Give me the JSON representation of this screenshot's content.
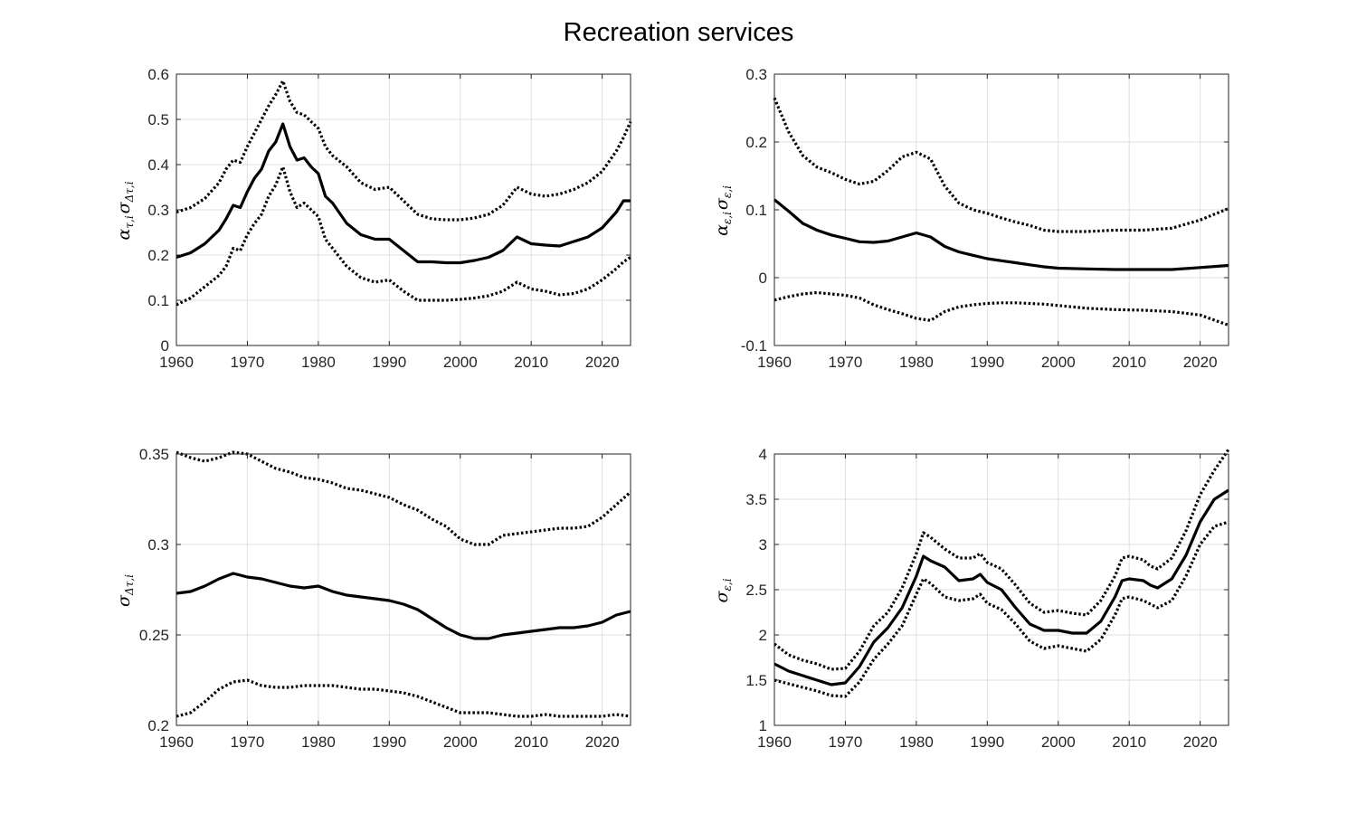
{
  "title": "Recreation services",
  "chart_data": [
    {
      "type": "line",
      "ylabel": "ατ,iστ,i",
      "ylabel_base1": "α",
      "ylabel_sub1": "τ,i",
      "ylabel_base2": "σ",
      "ylabel_sub2": "Δτ,i",
      "xlim": [
        1960,
        2024
      ],
      "ylim": [
        0,
        0.6
      ],
      "xticks": [
        1960,
        1970,
        1980,
        1990,
        2000,
        2010,
        2020
      ],
      "yticks": [
        0,
        0.1,
        0.2,
        0.3,
        0.4,
        0.5,
        0.6
      ],
      "yticklabels": [
        "0",
        "0.1",
        "0.2",
        "0.3",
        "0.4",
        "0.5",
        "0.6"
      ],
      "grid": true,
      "x": [
        1960,
        1962,
        1964,
        1966,
        1967,
        1968,
        1969,
        1970,
        1971,
        1972,
        1973,
        1974,
        1975,
        1976,
        1977,
        1978,
        1979,
        1980,
        1981,
        1982,
        1984,
        1986,
        1988,
        1990,
        1992,
        1994,
        1996,
        1998,
        2000,
        2002,
        2004,
        2006,
        2008,
        2010,
        2012,
        2014,
        2016,
        2018,
        2020,
        2022,
        2023,
        2024
      ],
      "series": [
        {
          "style": "solid",
          "values": [
            0.195,
            0.205,
            0.225,
            0.255,
            0.28,
            0.31,
            0.305,
            0.34,
            0.37,
            0.39,
            0.43,
            0.45,
            0.49,
            0.44,
            0.41,
            0.415,
            0.395,
            0.38,
            0.33,
            0.315,
            0.27,
            0.245,
            0.235,
            0.235,
            0.21,
            0.185,
            0.185,
            0.183,
            0.183,
            0.188,
            0.195,
            0.21,
            0.24,
            0.225,
            0.222,
            0.22,
            0.23,
            0.24,
            0.26,
            0.295,
            0.32,
            0.32
          ]
        },
        {
          "style": "dotted",
          "values": [
            0.295,
            0.305,
            0.325,
            0.36,
            0.39,
            0.41,
            0.405,
            0.44,
            0.47,
            0.5,
            0.53,
            0.555,
            0.585,
            0.54,
            0.515,
            0.51,
            0.495,
            0.48,
            0.44,
            0.42,
            0.395,
            0.36,
            0.345,
            0.35,
            0.32,
            0.29,
            0.28,
            0.278,
            0.278,
            0.282,
            0.29,
            0.31,
            0.35,
            0.335,
            0.33,
            0.335,
            0.345,
            0.36,
            0.385,
            0.43,
            0.46,
            0.495
          ]
        },
        {
          "style": "dotted",
          "values": [
            0.09,
            0.105,
            0.13,
            0.155,
            0.175,
            0.215,
            0.21,
            0.245,
            0.27,
            0.29,
            0.33,
            0.355,
            0.395,
            0.34,
            0.305,
            0.315,
            0.3,
            0.285,
            0.235,
            0.215,
            0.175,
            0.15,
            0.14,
            0.145,
            0.12,
            0.1,
            0.1,
            0.1,
            0.102,
            0.105,
            0.11,
            0.12,
            0.14,
            0.125,
            0.12,
            0.112,
            0.115,
            0.125,
            0.145,
            0.17,
            0.185,
            0.195
          ]
        }
      ]
    },
    {
      "type": "line",
      "ylabel": "αε,iσε,i",
      "ylabel_base1": "α",
      "ylabel_sub1": "ε,i",
      "ylabel_base2": "σ",
      "ylabel_sub2": "ε,i",
      "xlim": [
        1960,
        2024
      ],
      "ylim": [
        -0.1,
        0.3
      ],
      "xticks": [
        1960,
        1970,
        1980,
        1990,
        2000,
        2010,
        2020
      ],
      "yticks": [
        -0.1,
        0,
        0.1,
        0.2,
        0.3
      ],
      "yticklabels": [
        "-0.1",
        "0",
        "0.1",
        "0.2",
        "0.3"
      ],
      "grid": true,
      "x": [
        1960,
        1962,
        1964,
        1966,
        1968,
        1970,
        1972,
        1974,
        1976,
        1978,
        1980,
        1982,
        1984,
        1986,
        1988,
        1990,
        1992,
        1994,
        1996,
        1998,
        2000,
        2004,
        2008,
        2012,
        2016,
        2020,
        2024
      ],
      "series": [
        {
          "style": "solid",
          "values": [
            0.115,
            0.098,
            0.08,
            0.07,
            0.063,
            0.058,
            0.053,
            0.052,
            0.054,
            0.06,
            0.066,
            0.06,
            0.046,
            0.038,
            0.033,
            0.028,
            0.025,
            0.022,
            0.019,
            0.016,
            0.014,
            0.013,
            0.012,
            0.012,
            0.012,
            0.015,
            0.018
          ]
        },
        {
          "style": "dotted",
          "values": [
            0.265,
            0.215,
            0.18,
            0.163,
            0.155,
            0.145,
            0.138,
            0.142,
            0.158,
            0.178,
            0.185,
            0.175,
            0.135,
            0.11,
            0.1,
            0.095,
            0.088,
            0.082,
            0.077,
            0.07,
            0.068,
            0.068,
            0.07,
            0.07,
            0.073,
            0.085,
            0.102
          ]
        },
        {
          "style": "dotted",
          "values": [
            -0.033,
            -0.028,
            -0.024,
            -0.022,
            -0.024,
            -0.026,
            -0.03,
            -0.04,
            -0.047,
            -0.053,
            -0.06,
            -0.063,
            -0.05,
            -0.043,
            -0.04,
            -0.038,
            -0.037,
            -0.037,
            -0.038,
            -0.039,
            -0.041,
            -0.045,
            -0.047,
            -0.048,
            -0.05,
            -0.055,
            -0.07
          ]
        }
      ]
    },
    {
      "type": "line",
      "ylabel": "σΔτ,i",
      "ylabel_base1": "σ",
      "ylabel_sub1": "Δτ,i",
      "xlim": [
        1960,
        2024
      ],
      "ylim": [
        0.2,
        0.35
      ],
      "xticks": [
        1960,
        1970,
        1980,
        1990,
        2000,
        2010,
        2020
      ],
      "yticks": [
        0.2,
        0.25,
        0.3,
        0.35
      ],
      "yticklabels": [
        "0.2",
        "0.25",
        "0.3",
        "0.35"
      ],
      "grid": true,
      "x": [
        1960,
        1962,
        1964,
        1966,
        1968,
        1970,
        1972,
        1974,
        1976,
        1978,
        1980,
        1982,
        1984,
        1986,
        1988,
        1990,
        1992,
        1994,
        1996,
        1998,
        2000,
        2002,
        2004,
        2006,
        2008,
        2010,
        2012,
        2014,
        2016,
        2018,
        2020,
        2022,
        2024
      ],
      "series": [
        {
          "style": "solid",
          "values": [
            0.273,
            0.274,
            0.277,
            0.281,
            0.284,
            0.282,
            0.281,
            0.279,
            0.277,
            0.276,
            0.277,
            0.274,
            0.272,
            0.271,
            0.27,
            0.269,
            0.267,
            0.264,
            0.259,
            0.254,
            0.25,
            0.248,
            0.248,
            0.25,
            0.251,
            0.252,
            0.253,
            0.254,
            0.254,
            0.255,
            0.257,
            0.261,
            0.263
          ]
        },
        {
          "style": "dotted",
          "values": [
            0.351,
            0.348,
            0.346,
            0.348,
            0.351,
            0.35,
            0.346,
            0.342,
            0.34,
            0.337,
            0.336,
            0.334,
            0.331,
            0.33,
            0.328,
            0.326,
            0.322,
            0.319,
            0.314,
            0.31,
            0.303,
            0.3,
            0.3,
            0.305,
            0.306,
            0.307,
            0.308,
            0.309,
            0.309,
            0.31,
            0.315,
            0.322,
            0.329
          ]
        },
        {
          "style": "dotted",
          "values": [
            0.205,
            0.207,
            0.213,
            0.22,
            0.224,
            0.225,
            0.222,
            0.221,
            0.221,
            0.222,
            0.222,
            0.222,
            0.221,
            0.22,
            0.22,
            0.219,
            0.218,
            0.216,
            0.213,
            0.21,
            0.207,
            0.207,
            0.207,
            0.206,
            0.205,
            0.205,
            0.206,
            0.205,
            0.205,
            0.205,
            0.205,
            0.206,
            0.205
          ]
        }
      ]
    },
    {
      "type": "line",
      "ylabel": "σε,i",
      "ylabel_base1": "σ",
      "ylabel_sub1": "ε,i",
      "xlim": [
        1960,
        2024
      ],
      "ylim": [
        1,
        4
      ],
      "xticks": [
        1960,
        1970,
        1980,
        1990,
        2000,
        2010,
        2020
      ],
      "yticks": [
        1,
        1.5,
        2,
        2.5,
        3,
        3.5,
        4
      ],
      "yticklabels": [
        "1",
        "1.5",
        "2",
        "2.5",
        "3",
        "3.5",
        "4"
      ],
      "grid": true,
      "x": [
        1960,
        1962,
        1964,
        1966,
        1968,
        1970,
        1972,
        1974,
        1976,
        1978,
        1980,
        1981,
        1982,
        1984,
        1986,
        1988,
        1989,
        1990,
        1992,
        1994,
        1996,
        1998,
        2000,
        2002,
        2004,
        2006,
        2008,
        2009,
        2010,
        2012,
        2013,
        2014,
        2016,
        2018,
        2020,
        2022,
        2024
      ],
      "series": [
        {
          "style": "solid",
          "values": [
            1.68,
            1.6,
            1.55,
            1.5,
            1.45,
            1.47,
            1.65,
            1.92,
            2.08,
            2.3,
            2.65,
            2.87,
            2.82,
            2.75,
            2.6,
            2.62,
            2.67,
            2.58,
            2.5,
            2.3,
            2.12,
            2.05,
            2.05,
            2.02,
            2.02,
            2.15,
            2.42,
            2.6,
            2.62,
            2.6,
            2.55,
            2.52,
            2.62,
            2.88,
            3.25,
            3.5,
            3.6
          ]
        },
        {
          "style": "dotted",
          "values": [
            1.9,
            1.78,
            1.72,
            1.68,
            1.62,
            1.63,
            1.82,
            2.1,
            2.25,
            2.52,
            2.9,
            3.13,
            3.08,
            2.95,
            2.85,
            2.85,
            2.9,
            2.8,
            2.73,
            2.55,
            2.35,
            2.25,
            2.27,
            2.24,
            2.22,
            2.38,
            2.65,
            2.85,
            2.87,
            2.83,
            2.76,
            2.73,
            2.85,
            3.15,
            3.55,
            3.82,
            4.05
          ]
        },
        {
          "style": "dotted",
          "values": [
            1.5,
            1.46,
            1.42,
            1.38,
            1.33,
            1.32,
            1.48,
            1.73,
            1.9,
            2.1,
            2.45,
            2.62,
            2.57,
            2.42,
            2.38,
            2.4,
            2.45,
            2.35,
            2.28,
            2.12,
            1.93,
            1.85,
            1.88,
            1.85,
            1.82,
            1.95,
            2.22,
            2.4,
            2.42,
            2.38,
            2.34,
            2.3,
            2.38,
            2.65,
            3.0,
            3.2,
            3.25
          ]
        }
      ]
    }
  ]
}
